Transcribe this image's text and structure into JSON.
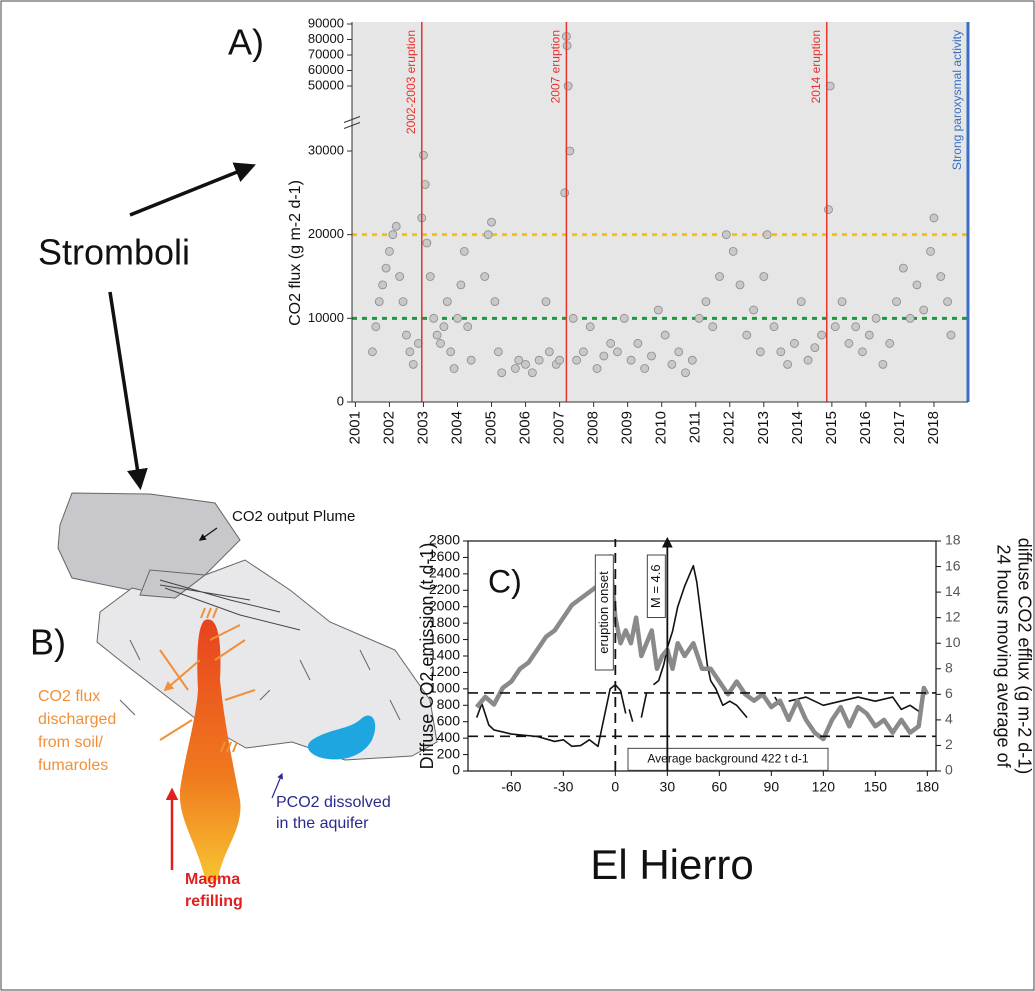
{
  "chart_data": [
    {
      "type": "scatter",
      "title": "A)",
      "ylabel": "CO2 flux (g m-2 d-1)",
      "xlim": [
        2000.9,
        2019
      ],
      "xticks": [
        2001,
        2002,
        2003,
        2004,
        2005,
        2006,
        2007,
        2008,
        2009,
        2010,
        2011,
        2012,
        2013,
        2014,
        2015,
        2016,
        2017,
        2018
      ],
      "ylim": [
        0,
        90000
      ],
      "y_break": [
        30000,
        50000
      ],
      "yticks": [
        0,
        10000,
        20000,
        30000,
        50000,
        60000,
        70000,
        80000,
        90000
      ],
      "series": [
        {
          "color": "#c8c8c8",
          "x": [
            2001.5,
            2001.6,
            2001.7,
            2001.8,
            2001.9,
            2002.0,
            2002.1,
            2002.2,
            2002.3,
            2002.4,
            2002.5,
            2002.6,
            2002.7,
            2002.85,
            2002.95,
            2003.0,
            2003.05,
            2003.1,
            2003.2,
            2003.3,
            2003.4,
            2003.5,
            2003.6,
            2003.7,
            2003.8,
            2003.9,
            2004.0,
            2004.1,
            2004.2,
            2004.3,
            2004.4,
            2004.8,
            2004.9,
            2005.0,
            2005.1,
            2005.2,
            2005.3,
            2005.7,
            2005.8,
            2006.0,
            2006.2,
            2006.4,
            2006.6,
            2006.7,
            2006.9,
            2007.0,
            2007.15,
            2007.2,
            2007.22,
            2007.25,
            2007.3,
            2007.4,
            2007.5,
            2007.7,
            2007.9,
            2008.1,
            2008.3,
            2008.5,
            2008.7,
            2008.9,
            2009.1,
            2009.3,
            2009.5,
            2009.7,
            2009.9,
            2010.1,
            2010.3,
            2010.5,
            2010.7,
            2010.9,
            2011.1,
            2011.3,
            2011.5,
            2011.7,
            2011.9,
            2012.1,
            2012.3,
            2012.5,
            2012.7,
            2012.9,
            2013.0,
            2013.1,
            2013.3,
            2013.5,
            2013.7,
            2013.9,
            2014.1,
            2014.3,
            2014.5,
            2014.7,
            2014.9,
            2014.95,
            2015.1,
            2015.3,
            2015.5,
            2015.7,
            2015.9,
            2016.1,
            2016.3,
            2016.5,
            2016.7,
            2016.9,
            2017.1,
            2017.3,
            2017.5,
            2017.7,
            2017.9,
            2018.0,
            2018.2,
            2018.4,
            2018.5
          ],
          "values": [
            6000,
            9000,
            12000,
            14000,
            16000,
            18000,
            20000,
            21000,
            15000,
            12000,
            8000,
            6000,
            4500,
            7000,
            22000,
            29500,
            26000,
            19000,
            15000,
            10000,
            8000,
            7000,
            9000,
            12000,
            6000,
            4000,
            10000,
            14000,
            18000,
            9000,
            5000,
            15000,
            20000,
            21500,
            12000,
            6000,
            3500,
            4000,
            5000,
            4500,
            3500,
            5000,
            12000,
            6000,
            4500,
            5000,
            25000,
            82000,
            76000,
            50000,
            30000,
            10000,
            5000,
            6000,
            9000,
            4000,
            5500,
            7000,
            6000,
            10000,
            5000,
            7000,
            4000,
            5500,
            11000,
            8000,
            4500,
            6000,
            3500,
            5000,
            10000,
            12000,
            9000,
            15000,
            20000,
            18000,
            14000,
            8000,
            11000,
            6000,
            15000,
            20000,
            9000,
            6000,
            4500,
            7000,
            12000,
            5000,
            6500,
            8000,
            23000,
            50000,
            9000,
            12000,
            7000,
            9000,
            6000,
            8000,
            10000,
            4500,
            7000,
            12000,
            16000,
            10000,
            14000,
            11000,
            18000,
            22000,
            15000,
            12000,
            8000
          ]
        }
      ],
      "event_lines": [
        {
          "x": 2002.95,
          "label": "2002-2003 eruption",
          "color": "#e8322d"
        },
        {
          "x": 2007.2,
          "label": "2007 eruption",
          "color": "#e8322d"
        },
        {
          "x": 2014.85,
          "label": "2014 eruption",
          "color": "#e8322d"
        },
        {
          "x": 2019,
          "label": "Strong paroxysmal activity",
          "color": "#3a6fc4"
        }
      ],
      "reference_lines": [
        {
          "y": 20000,
          "color": "#f2c21b"
        },
        {
          "y": 10000,
          "color": "#1a9a3a"
        }
      ]
    },
    {
      "type": "line",
      "title": "C)",
      "xlabel": "El Hierro",
      "ylabel": "Diffuse CO2 emission (t d-1)",
      "y2label": [
        "24 hours moving average of",
        "diffuse CO2 efflux (g m-2 d-1)"
      ],
      "xlim": [
        -85,
        185
      ],
      "xticks": [
        -60,
        -30,
        0,
        30,
        60,
        90,
        120,
        150,
        180
      ],
      "ylim": [
        0,
        2800
      ],
      "yticks": [
        0,
        200,
        400,
        600,
        800,
        1000,
        1200,
        1400,
        1600,
        1800,
        2000,
        2200,
        2400,
        2600,
        2800
      ],
      "y2lim": [
        0,
        18
      ],
      "y2ticks": [
        0,
        2,
        4,
        6,
        8,
        10,
        12,
        14,
        16,
        18
      ],
      "series": [
        {
          "color": "#111111",
          "x": [
            -80,
            -77,
            -73,
            -70,
            -60,
            -45,
            -35,
            -30,
            -25,
            -20,
            -15,
            -10,
            -6,
            -3,
            0,
            3,
            6,
            7,
            8,
            10,
            12,
            15,
            18,
            20,
            22,
            25,
            28,
            30,
            33,
            36,
            40,
            43,
            45,
            47,
            50,
            53,
            55,
            58,
            62,
            66,
            70,
            74,
            76,
            84,
            92,
            95,
            97,
            100,
            110,
            120,
            130,
            140,
            150,
            160,
            165,
            170,
            177
          ],
          "values": [
            650,
            820,
            560,
            500,
            450,
            420,
            360,
            380,
            300,
            310,
            380,
            300,
            700,
            1000,
            1050,
            980,
            700,
            null,
            750,
            600,
            null,
            650,
            950,
            null,
            1050,
            1100,
            1300,
            1500,
            1700,
            2000,
            2250,
            2400,
            2500,
            2300,
            1800,
            1300,
            1100,
            1000,
            800,
            850,
            800,
            700,
            650,
            null,
            900,
            800,
            null,
            850,
            900,
            800,
            850,
            900,
            850,
            900,
            750,
            800,
            700
          ]
        },
        {
          "color": "#8a8a8a",
          "axis": "y2",
          "x": [
            -80,
            -75,
            -70,
            -65,
            -60,
            -55,
            -50,
            -45,
            -40,
            -35,
            -30,
            -25,
            -20,
            -15,
            -10,
            -7,
            -5,
            -3,
            0,
            3,
            6,
            9,
            12,
            15,
            18,
            21,
            24,
            27,
            30,
            33,
            36,
            40,
            45,
            50,
            55,
            60,
            65,
            70,
            75,
            80,
            85,
            90,
            95,
            100,
            105,
            110,
            115,
            120,
            125,
            130,
            135,
            140,
            145,
            150,
            155,
            160,
            165,
            170,
            175,
            178,
            180
          ],
          "values": [
            5,
            5.8,
            5.2,
            6.5,
            7,
            8,
            8.5,
            9.5,
            10.5,
            11,
            12,
            13,
            13.5,
            14,
            14.5,
            16.5,
            14,
            16.8,
            12,
            10,
            11,
            10,
            12,
            9,
            10,
            11,
            8,
            9,
            9.5,
            8,
            10,
            9,
            10,
            8,
            8,
            7,
            6,
            7,
            6,
            5.5,
            6,
            5,
            5.5,
            4,
            5.5,
            4,
            3,
            2.5,
            4,
            5,
            3.5,
            5,
            4.5,
            3.5,
            4,
            3,
            4,
            3,
            3.5,
            6.5,
            6
          ]
        }
      ],
      "event_lines": [
        {
          "x": 0,
          "label": "eruption onset",
          "style": "dashed"
        },
        {
          "x": 30,
          "label": "M = 4.6",
          "style": "arrow"
        }
      ],
      "reference_lines": [
        {
          "y": 950
        },
        {
          "y": 422,
          "label": "Average background 422 t d-1"
        }
      ]
    }
  ],
  "diagram": {
    "stromboli": "Stromboli",
    "panel_b": "B)",
    "plume_label": "CO2 output Plume",
    "flux_label": [
      "CO2 flux",
      "discharged",
      "from soil/",
      "fumaroles"
    ],
    "aquifer_label": [
      "PCO2 dissolved",
      "in the aquifer"
    ],
    "magma_label": [
      "Magma",
      "refilling"
    ]
  }
}
